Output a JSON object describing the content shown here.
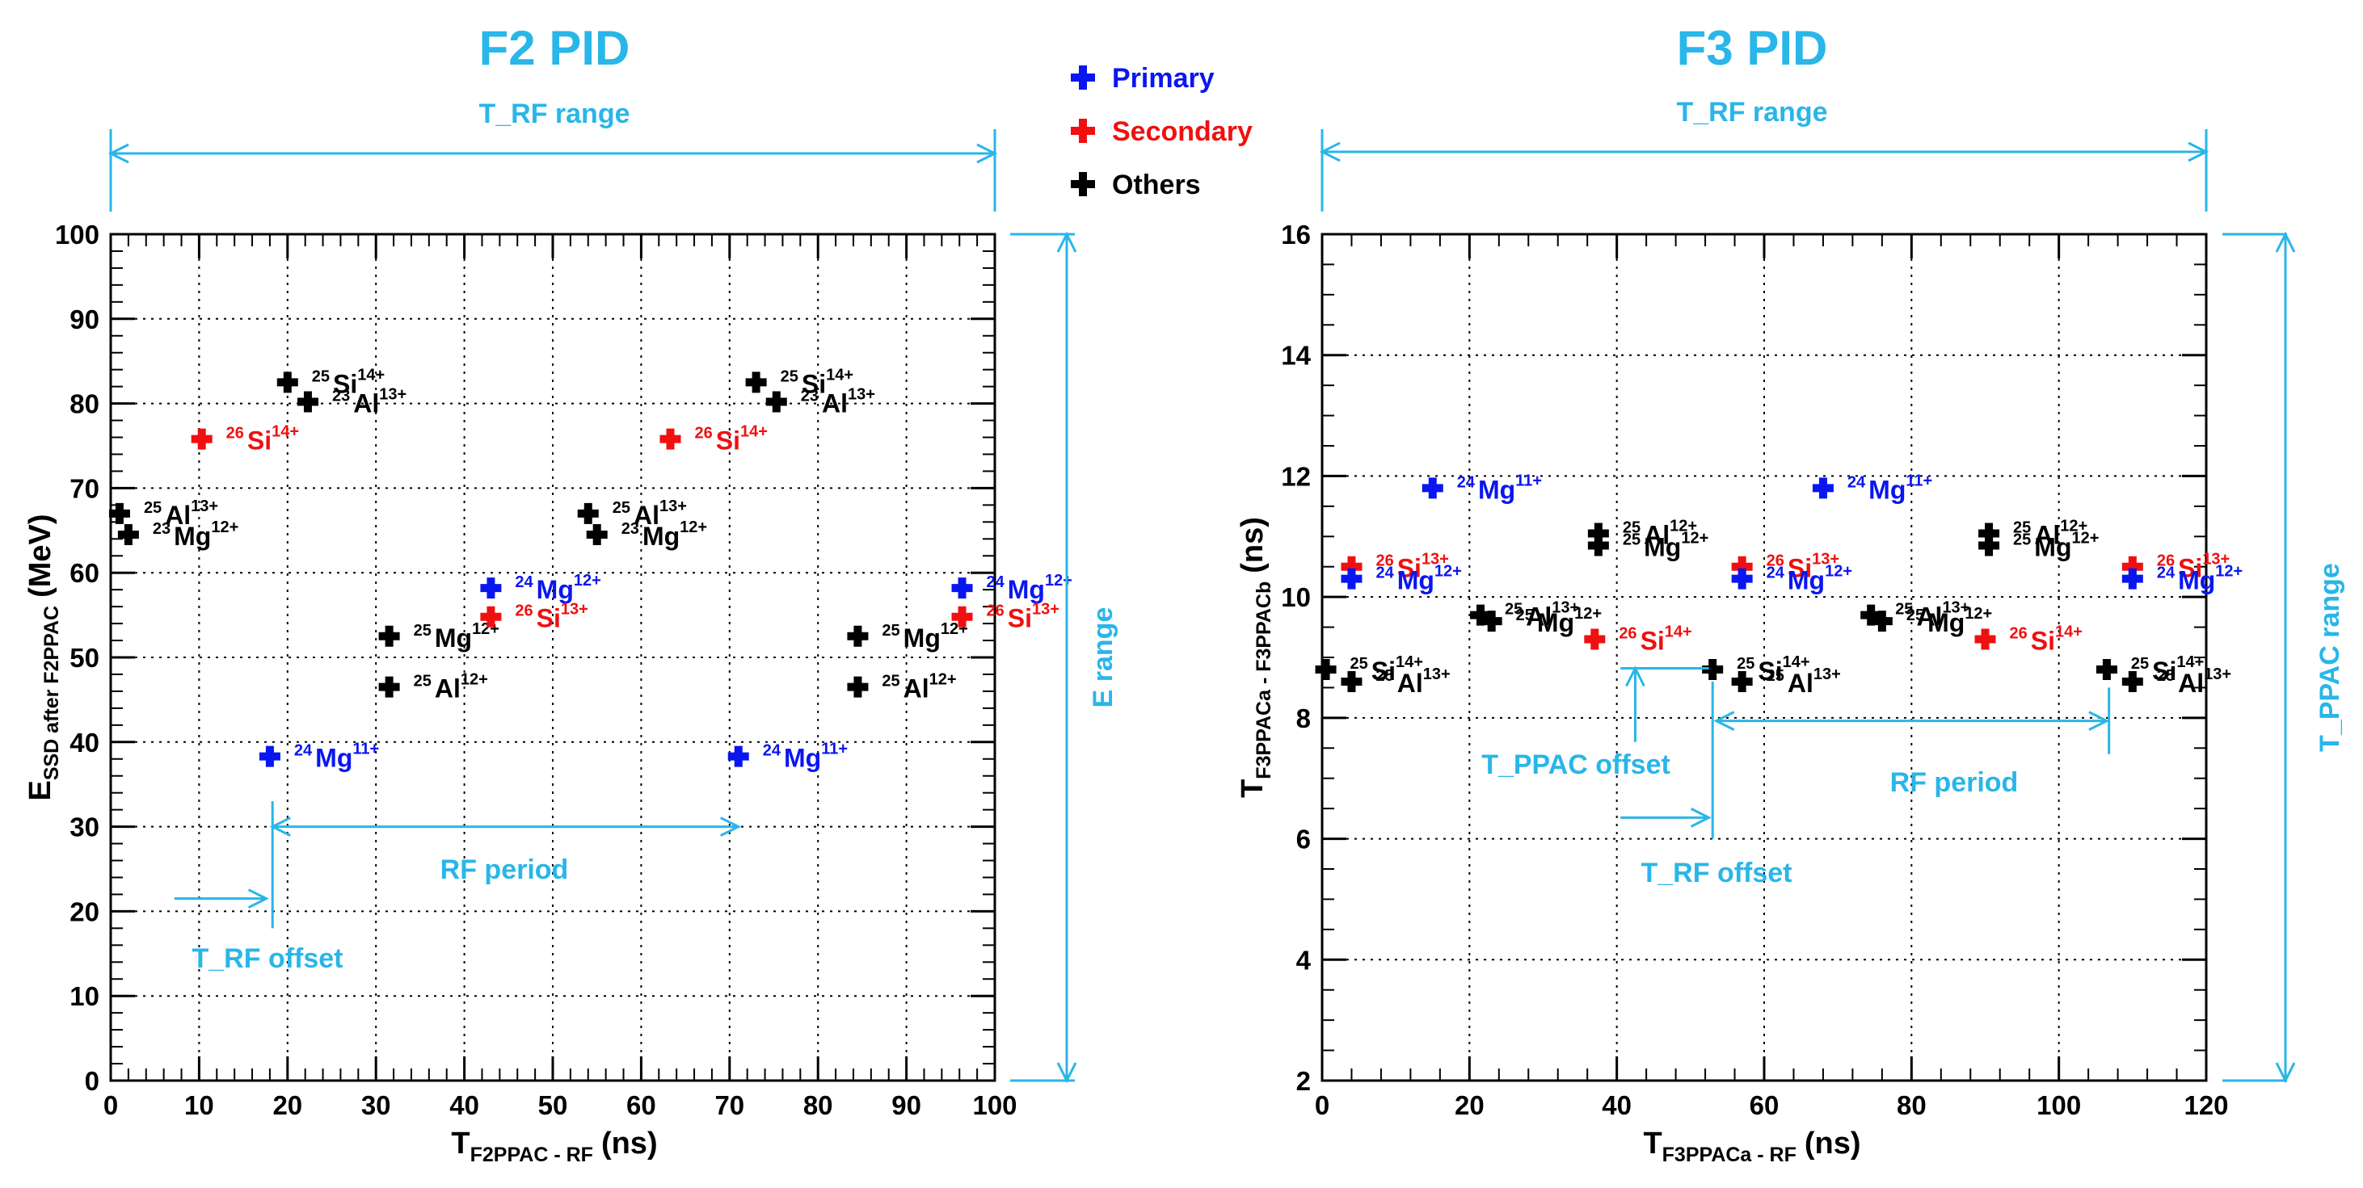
{
  "colors": {
    "annotation": "#29b6e8",
    "primary": "#0a16f0",
    "secondary": "#f01010",
    "others": "#000000",
    "grid": "#000000"
  },
  "legend": {
    "items": [
      {
        "label": "Primary",
        "color": "#0a16f0"
      },
      {
        "label": "Secondary",
        "color": "#f01010"
      },
      {
        "label": "Others",
        "color": "#000000"
      }
    ]
  },
  "chart_data": [
    {
      "type": "scatter",
      "title": "F2 PID",
      "xlabel": {
        "main": "T",
        "sub": "F2PPAC - RF",
        "unit": "(ns)"
      },
      "ylabel": {
        "main": "E",
        "sub": "SSD after F2PPAC",
        "unit": "(MeV)"
      },
      "xlim": [
        0,
        100
      ],
      "ylim": [
        0,
        100
      ],
      "xticks": [
        0,
        10,
        20,
        30,
        40,
        50,
        60,
        70,
        80,
        90,
        100
      ],
      "yticks": [
        0,
        10,
        20,
        30,
        40,
        50,
        60,
        70,
        80,
        90,
        100
      ],
      "grid": true,
      "points": [
        {
          "x": 1,
          "y": 67,
          "kind": "others",
          "mass": "25",
          "element": "Al",
          "charge": "13+"
        },
        {
          "x": 2,
          "y": 64.5,
          "kind": "others",
          "mass": "23",
          "element": "Mg",
          "charge": "12+"
        },
        {
          "x": 10.3,
          "y": 75.8,
          "kind": "secondary",
          "mass": "26",
          "element": "Si",
          "charge": "14+"
        },
        {
          "x": 20,
          "y": 82.5,
          "kind": "others",
          "mass": "25",
          "element": "Si",
          "charge": "14+"
        },
        {
          "x": 22.3,
          "y": 80.2,
          "kind": "others",
          "mass": "23",
          "element": "Al",
          "charge": "13+"
        },
        {
          "x": 18,
          "y": 38.3,
          "kind": "primary",
          "mass": "24",
          "element": "Mg",
          "charge": "11+"
        },
        {
          "x": 31.5,
          "y": 52.5,
          "kind": "others",
          "mass": "25",
          "element": "Mg",
          "charge": "12+"
        },
        {
          "x": 31.5,
          "y": 46.5,
          "kind": "others",
          "mass": "25",
          "element": "Al",
          "charge": "12+"
        },
        {
          "x": 43,
          "y": 58.2,
          "kind": "primary",
          "mass": "24",
          "element": "Mg",
          "charge": "12+"
        },
        {
          "x": 43,
          "y": 54.8,
          "kind": "secondary",
          "mass": "26",
          "element": "Si",
          "charge": "13+"
        },
        {
          "x": 54,
          "y": 67,
          "kind": "others",
          "mass": "25",
          "element": "Al",
          "charge": "13+"
        },
        {
          "x": 55,
          "y": 64.5,
          "kind": "others",
          "mass": "23",
          "element": "Mg",
          "charge": "12+"
        },
        {
          "x": 63.3,
          "y": 75.8,
          "kind": "secondary",
          "mass": "26",
          "element": "Si",
          "charge": "14+"
        },
        {
          "x": 73,
          "y": 82.5,
          "kind": "others",
          "mass": "25",
          "element": "Si",
          "charge": "14+"
        },
        {
          "x": 75.3,
          "y": 80.2,
          "kind": "others",
          "mass": "23",
          "element": "Al",
          "charge": "13+"
        },
        {
          "x": 71,
          "y": 38.3,
          "kind": "primary",
          "mass": "24",
          "element": "Mg",
          "charge": "11+"
        },
        {
          "x": 84.5,
          "y": 52.5,
          "kind": "others",
          "mass": "25",
          "element": "Mg",
          "charge": "12+"
        },
        {
          "x": 84.5,
          "y": 46.5,
          "kind": "others",
          "mass": "25",
          "element": "Al",
          "charge": "12+"
        },
        {
          "x": 96.3,
          "y": 58.2,
          "kind": "primary",
          "mass": "24",
          "element": "Mg",
          "charge": "12+"
        },
        {
          "x": 96.3,
          "y": 54.8,
          "kind": "secondary",
          "mass": "26",
          "element": "Si",
          "charge": "13+"
        }
      ],
      "annotations": {
        "trf_range": "T_RF range",
        "e_range": "E range",
        "rf_period": "RF period",
        "trf_offset": "T_RF offset"
      }
    },
    {
      "type": "scatter",
      "title": "F3 PID",
      "xlabel": {
        "main": "T",
        "sub": "F3PPACa - RF",
        "unit": "(ns)"
      },
      "ylabel": {
        "main": "T",
        "sub": "F3PPACa - F3PPACb",
        "unit": "(ns)"
      },
      "xlim": [
        0,
        120
      ],
      "ylim": [
        2,
        16
      ],
      "xticks": [
        0,
        20,
        40,
        60,
        80,
        100,
        120
      ],
      "yticks": [
        2,
        4,
        6,
        8,
        10,
        12,
        14,
        16
      ],
      "grid": true,
      "points": [
        {
          "x": 0.5,
          "y": 8.8,
          "kind": "others",
          "mass": "25",
          "element": "Si",
          "charge": "14+"
        },
        {
          "x": 4,
          "y": 8.6,
          "kind": "others",
          "mass": "25",
          "element": "Al",
          "charge": "13+"
        },
        {
          "x": 4,
          "y": 10.5,
          "kind": "secondary",
          "mass": "26",
          "element": "Si",
          "charge": "13+"
        },
        {
          "x": 4,
          "y": 10.3,
          "kind": "primary",
          "mass": "24",
          "element": "Mg",
          "charge": "12+"
        },
        {
          "x": 15,
          "y": 11.8,
          "kind": "primary",
          "mass": "24",
          "element": "Mg",
          "charge": "11+"
        },
        {
          "x": 21.5,
          "y": 9.7,
          "kind": "others",
          "mass": "25",
          "element": "Al",
          "charge": "13+"
        },
        {
          "x": 23,
          "y": 9.6,
          "kind": "others",
          "mass": "25",
          "element": "Mg",
          "charge": "12+"
        },
        {
          "x": 37.5,
          "y": 11.05,
          "kind": "others",
          "mass": "25",
          "element": "Al",
          "charge": "12+"
        },
        {
          "x": 37.5,
          "y": 10.85,
          "kind": "others",
          "mass": "25",
          "element": "Mg",
          "charge": "12+"
        },
        {
          "x": 37,
          "y": 9.3,
          "kind": "secondary",
          "mass": "26",
          "element": "Si",
          "charge": "14+"
        },
        {
          "x": 53,
          "y": 8.8,
          "kind": "others",
          "mass": "25",
          "element": "Si",
          "charge": "14+"
        },
        {
          "x": 57,
          "y": 8.6,
          "kind": "others",
          "mass": "25",
          "element": "Al",
          "charge": "13+"
        },
        {
          "x": 57,
          "y": 10.5,
          "kind": "secondary",
          "mass": "26",
          "element": "Si",
          "charge": "13+"
        },
        {
          "x": 57,
          "y": 10.3,
          "kind": "primary",
          "mass": "24",
          "element": "Mg",
          "charge": "12+"
        },
        {
          "x": 68,
          "y": 11.8,
          "kind": "primary",
          "mass": "24",
          "element": "Mg",
          "charge": "11+"
        },
        {
          "x": 74.5,
          "y": 9.7,
          "kind": "others",
          "mass": "25",
          "element": "Al",
          "charge": "13+"
        },
        {
          "x": 76,
          "y": 9.6,
          "kind": "others",
          "mass": "25",
          "element": "Mg",
          "charge": "12+"
        },
        {
          "x": 90.5,
          "y": 11.05,
          "kind": "others",
          "mass": "25",
          "element": "Al",
          "charge": "12+"
        },
        {
          "x": 90.5,
          "y": 10.85,
          "kind": "others",
          "mass": "25",
          "element": "Mg",
          "charge": "12+"
        },
        {
          "x": 90,
          "y": 9.3,
          "kind": "secondary",
          "mass": "26",
          "element": "Si",
          "charge": "14+"
        },
        {
          "x": 106.5,
          "y": 8.8,
          "kind": "others",
          "mass": "25",
          "element": "Si",
          "charge": "14+"
        },
        {
          "x": 110,
          "y": 8.6,
          "kind": "others",
          "mass": "25",
          "element": "Al",
          "charge": "13+"
        },
        {
          "x": 110,
          "y": 10.5,
          "kind": "secondary",
          "mass": "26",
          "element": "Si",
          "charge": "13+"
        },
        {
          "x": 110,
          "y": 10.3,
          "kind": "primary",
          "mass": "24",
          "element": "Mg",
          "charge": "12+"
        }
      ],
      "annotations": {
        "trf_range": "T_RF range",
        "tppac_range": "T_PPAC range",
        "rf_period": "RF period",
        "trf_offset": "T_RF offset",
        "tppac_offset": "T_PPAC offset"
      }
    }
  ]
}
